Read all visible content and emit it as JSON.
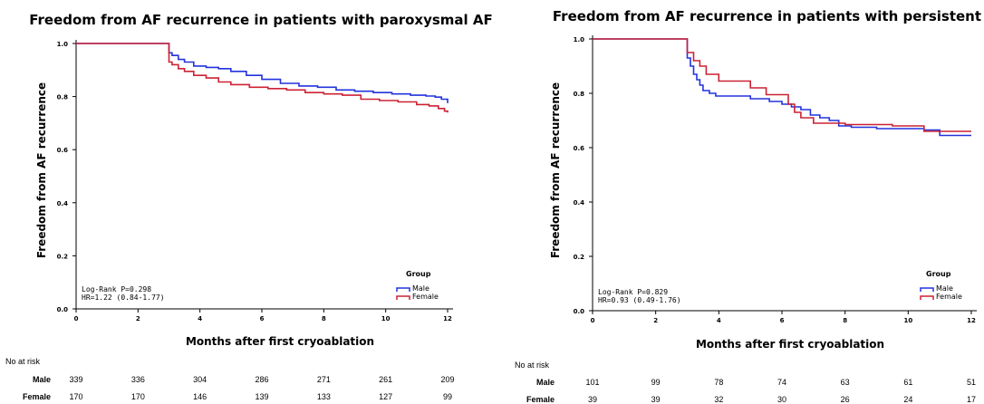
{
  "chart_data": [
    {
      "type": "line",
      "title": "Freedom from AF recurrence in patients with paroxysmal AF",
      "xlabel": "Months after first cryoablation",
      "ylabel": "Freedom from AF recurrence",
      "xlim": [
        0,
        12
      ],
      "ylim": [
        0,
        1.0
      ],
      "xticks": [
        "0",
        "2",
        "4",
        "6",
        "8",
        "10",
        "12"
      ],
      "yticks": [
        "0.0",
        "0.2",
        "0.4",
        "0.6",
        "0.8",
        "1.0"
      ],
      "grid": false,
      "stats": [
        "Log-Rank P=0.298",
        "HR=1.22 (0.84-1.77)"
      ],
      "legend": {
        "title": "Group",
        "placement": "bottom-right"
      },
      "series": [
        {
          "name": "Male",
          "color": "#2233dd",
          "x": [
            0,
            3.0,
            3.0,
            3.1,
            3.3,
            3.5,
            3.8,
            4.2,
            4.6,
            5.0,
            5.5,
            6.0,
            6.6,
            7.2,
            7.8,
            8.4,
            9.0,
            9.6,
            10.2,
            10.8,
            11.3,
            11.6,
            11.8,
            12.0
          ],
          "y": [
            1.0,
            1.0,
            0.965,
            0.955,
            0.94,
            0.93,
            0.915,
            0.91,
            0.905,
            0.895,
            0.88,
            0.865,
            0.85,
            0.84,
            0.835,
            0.825,
            0.82,
            0.815,
            0.81,
            0.805,
            0.802,
            0.798,
            0.79,
            0.775
          ]
        },
        {
          "name": "Female",
          "color": "#cc2233",
          "x": [
            0,
            3.0,
            3.0,
            3.1,
            3.3,
            3.5,
            3.8,
            4.2,
            4.6,
            5.0,
            5.6,
            6.2,
            6.8,
            7.4,
            8.0,
            8.6,
            9.2,
            9.8,
            10.4,
            11.0,
            11.4,
            11.7,
            11.9,
            12.0
          ],
          "y": [
            1.0,
            1.0,
            0.93,
            0.92,
            0.905,
            0.895,
            0.88,
            0.87,
            0.855,
            0.845,
            0.835,
            0.83,
            0.825,
            0.815,
            0.81,
            0.805,
            0.79,
            0.785,
            0.78,
            0.77,
            0.765,
            0.755,
            0.745,
            0.74
          ]
        }
      ]
    },
    {
      "type": "line",
      "title": "Freedom from AF recurrence in patients with persistent AF",
      "xlabel": "Months after first cryoablation",
      "ylabel": "Freedom from AF recurrence",
      "xlim": [
        0,
        12
      ],
      "ylim": [
        0,
        1.0
      ],
      "xticks": [
        "0",
        "2",
        "4",
        "6",
        "8",
        "10",
        "12"
      ],
      "yticks": [
        "0.0",
        "0.2",
        "0.4",
        "0.6",
        "0.8",
        "1.0"
      ],
      "grid": false,
      "stats": [
        "Log-Rank P=0.829",
        "HR=0.93 (0.49-1.76)"
      ],
      "legend": {
        "title": "Group",
        "placement": "bottom-right"
      },
      "series": [
        {
          "name": "Male",
          "color": "#2233dd",
          "x": [
            0,
            3.0,
            3.0,
            3.1,
            3.2,
            3.3,
            3.4,
            3.5,
            3.7,
            3.9,
            4.1,
            5.0,
            5.6,
            6.0,
            6.3,
            6.6,
            6.9,
            7.2,
            7.5,
            7.8,
            8.2,
            9.0,
            10.5,
            11.0,
            12.0
          ],
          "y": [
            1.0,
            1.0,
            0.93,
            0.9,
            0.87,
            0.85,
            0.83,
            0.81,
            0.8,
            0.79,
            0.79,
            0.78,
            0.77,
            0.76,
            0.75,
            0.74,
            0.72,
            0.71,
            0.7,
            0.68,
            0.675,
            0.67,
            0.665,
            0.645,
            0.645
          ]
        },
        {
          "name": "Female",
          "color": "#cc2233",
          "x": [
            0,
            3.0,
            3.0,
            3.2,
            3.4,
            3.6,
            4.0,
            5.0,
            5.5,
            6.2,
            6.4,
            6.6,
            7.0,
            8.0,
            9.5,
            10.5,
            11.0,
            12.0
          ],
          "y": [
            1.0,
            1.0,
            0.95,
            0.92,
            0.9,
            0.87,
            0.845,
            0.82,
            0.795,
            0.76,
            0.73,
            0.71,
            0.69,
            0.685,
            0.68,
            0.66,
            0.66,
            0.66
          ]
        }
      ]
    }
  ],
  "risk_tables": [
    {
      "header": "No at risk",
      "rows": [
        {
          "label": "Male",
          "values": [
            "339",
            "336",
            "304",
            "286",
            "271",
            "261",
            "209"
          ]
        },
        {
          "label": "Female",
          "values": [
            "170",
            "170",
            "146",
            "139",
            "133",
            "127",
            "99"
          ]
        }
      ]
    },
    {
      "header": "No at risk",
      "rows": [
        {
          "label": "Male",
          "values": [
            "101",
            "99",
            "78",
            "74",
            "63",
            "61",
            "51"
          ]
        },
        {
          "label": "Female",
          "values": [
            "39",
            "39",
            "32",
            "30",
            "26",
            "24",
            "17"
          ]
        }
      ]
    }
  ]
}
